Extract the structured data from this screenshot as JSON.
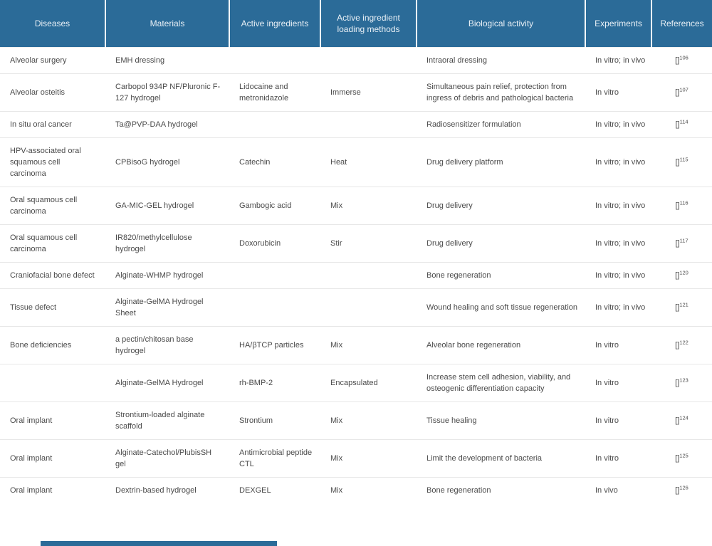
{
  "header": {
    "columns": [
      "Diseases",
      "Materials",
      "Active ingredients",
      "Active ingredient loading methods",
      "Biological activity",
      "Experiments",
      "References"
    ]
  },
  "ref_bracket": "[]",
  "rows": [
    {
      "disease": "Alveolar surgery",
      "material": "EMH dressing",
      "ingredient": "",
      "loading": "",
      "activity": "Intraoral dressing",
      "experiments": "In vitro; in vivo",
      "ref": "106"
    },
    {
      "disease": "Alveolar osteitis",
      "material": "Carbopol 934P NF/Pluronic F-127 hydrogel",
      "ingredient": "Lidocaine and metronidazole",
      "loading": "Immerse",
      "activity": "Simultaneous pain relief, protection from ingress of debris and pathological bacteria",
      "experiments": "In vitro",
      "ref": "107"
    },
    {
      "disease": "In situ oral cancer",
      "material": "Ta@PVP-DAA hydrogel",
      "ingredient": "",
      "loading": "",
      "activity": "Radiosensitizer formulation",
      "experiments": "In vitro; in vivo",
      "ref": "114"
    },
    {
      "disease": "HPV-associated oral squamous cell carcinoma",
      "material": "CPBisoG hydrogel",
      "ingredient": "Catechin",
      "loading": "Heat",
      "activity": "Drug delivery platform",
      "experiments": "In vitro; in vivo",
      "ref": "115"
    },
    {
      "disease": "Oral squamous cell carcinoma",
      "material": "GA-MIC-GEL hydrogel",
      "ingredient": "Gambogic acid",
      "loading": "Mix",
      "activity": "Drug delivery",
      "experiments": "In vitro; in vivo",
      "ref": "116"
    },
    {
      "disease": "Oral squamous cell carcinoma",
      "material": "IR820/methylcellulose hydrogel",
      "ingredient": "Doxorubicin",
      "loading": "Stir",
      "activity": "Drug delivery",
      "experiments": "In vitro; in vivo",
      "ref": "117"
    },
    {
      "disease": "Craniofacial bone defect",
      "material": "Alginate-WHMP hydrogel",
      "ingredient": "",
      "loading": "",
      "activity": "Bone regeneration",
      "experiments": "In vitro; in vivo",
      "ref": "120"
    },
    {
      "disease": "Tissue defect",
      "material": "Alginate-GelMA Hydrogel Sheet",
      "ingredient": "",
      "loading": "",
      "activity": "Wound healing and soft tissue regeneration",
      "experiments": "In vitro; in vivo",
      "ref": "121"
    },
    {
      "disease": "Bone deficiencies",
      "material": "a pectin/chitosan base hydrogel",
      "ingredient": "HA/βTCP particles",
      "loading": "Mix",
      "activity": "Alveolar bone regeneration",
      "experiments": "In vitro",
      "ref": "122"
    },
    {
      "disease": "",
      "material": "Alginate-GelMA Hydrogel",
      "ingredient": "rh-BMP-2",
      "loading": "Encapsulated",
      "activity": "Increase stem cell adhesion, viability, and osteogenic differentiation capacity",
      "experiments": "In vitro",
      "ref": "123"
    },
    {
      "disease": "Oral implant",
      "material": "Strontium-loaded alginate scaffold",
      "ingredient": "Strontium",
      "loading": "Mix",
      "activity": "Tissue healing",
      "experiments": "In vitro",
      "ref": "124"
    },
    {
      "disease": "Oral implant",
      "material": "Alginate-Catechol/PlubisSH gel",
      "ingredient": "Antimicrobial peptide CTL",
      "loading": "Mix",
      "activity": "Limit the development of bacteria",
      "experiments": "In vitro",
      "ref": "125"
    },
    {
      "disease": "Oral implant",
      "material": "Dextrin-based hydrogel",
      "ingredient": "DEXGEL",
      "loading": "Mix",
      "activity": "Bone regeneration",
      "experiments": "In vivo",
      "ref": "126"
    }
  ],
  "colors": {
    "header_bg": "#2b6b98",
    "header_text": "#e9f0f6",
    "body_text": "#4a4a4a",
    "row_border": "#e7e7e7"
  }
}
